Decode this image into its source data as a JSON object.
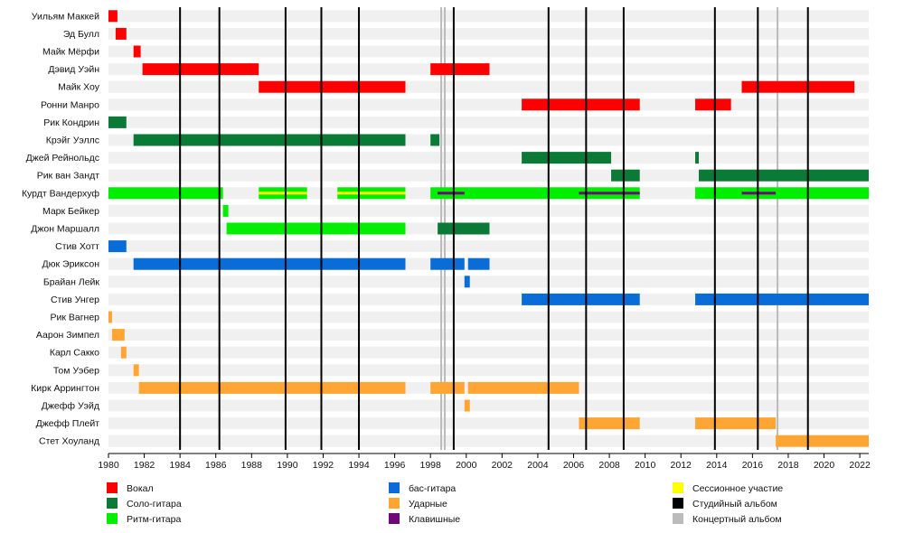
{
  "chart_data": {
    "type": "timeline",
    "x_range": [
      1980,
      2022.5
    ],
    "x_ticks": [
      1980,
      1982,
      1984,
      1986,
      1988,
      1990,
      1992,
      1994,
      1996,
      1998,
      2000,
      2002,
      2004,
      2006,
      2008,
      2010,
      2012,
      2014,
      2016,
      2018,
      2020,
      2022
    ],
    "grid": "alternating-rows",
    "colors": {
      "vocals": "#ff0000",
      "lead": "#0a7a36",
      "rhythm": "#00ee00",
      "bass": "#0a6cd6",
      "drums": "#ffa534",
      "keys": "#6e0a78",
      "session": "#ffff00",
      "studio": "#000000",
      "live": "#bbbbbb"
    },
    "members": [
      {
        "name": "Уильям Маккей",
        "bars": [
          {
            "role": "vocals",
            "start": 1980,
            "end": 1980.5
          }
        ]
      },
      {
        "name": "Эд Булл",
        "bars": [
          {
            "role": "vocals",
            "start": 1980.4,
            "end": 1981.0
          }
        ]
      },
      {
        "name": "Майк Мёрфи",
        "bars": [
          {
            "role": "vocals",
            "start": 1981.4,
            "end": 1981.8
          }
        ]
      },
      {
        "name": "Дэвид Уэйн",
        "bars": [
          {
            "role": "vocals",
            "start": 1981.9,
            "end": 1988.4
          },
          {
            "role": "vocals",
            "start": 1998.0,
            "end": 2001.3
          }
        ]
      },
      {
        "name": "Майк Хоу",
        "bars": [
          {
            "role": "vocals",
            "start": 1988.4,
            "end": 1996.6
          },
          {
            "role": "vocals",
            "start": 2015.4,
            "end": 2021.7
          }
        ]
      },
      {
        "name": "Ронни Манро",
        "bars": [
          {
            "role": "vocals",
            "start": 2003.1,
            "end": 2009.7
          },
          {
            "role": "vocals",
            "start": 2012.8,
            "end": 2014.8
          }
        ]
      },
      {
        "name": "Рик Кондрин",
        "bars": [
          {
            "role": "lead",
            "start": 1980,
            "end": 1981.0
          }
        ]
      },
      {
        "name": "Крэйг Уэллс",
        "bars": [
          {
            "role": "lead",
            "start": 1981.4,
            "end": 1996.6
          },
          {
            "role": "lead",
            "start": 1998.0,
            "end": 1998.5
          }
        ]
      },
      {
        "name": "Джей Рейнольдс",
        "bars": [
          {
            "role": "lead",
            "start": 2003.1,
            "end": 2008.1
          },
          {
            "role": "lead",
            "start": 2012.8,
            "end": 2013.0
          }
        ]
      },
      {
        "name": "Рик ван Зандт",
        "bars": [
          {
            "role": "lead",
            "start": 2008.1,
            "end": 2009.7
          },
          {
            "role": "lead",
            "start": 2013.0,
            "end": 2022.5
          }
        ]
      },
      {
        "name": "Курдт Вандерхуф",
        "bars": [
          {
            "role": "rhythm",
            "start": 1980,
            "end": 1986.4
          },
          {
            "role": "rhythm",
            "start": 1988.4,
            "end": 1991.1,
            "accent": "session"
          },
          {
            "role": "rhythm",
            "start": 1992.8,
            "end": 1996.6,
            "accent": "session"
          },
          {
            "role": "rhythm",
            "start": 1998.0,
            "end": 2009.7
          },
          {
            "role": "rhythm",
            "start": 2012.8,
            "end": 2022.5
          }
        ],
        "accents": [
          {
            "role": "keys",
            "start": 1998.4,
            "end": 1999.9
          },
          {
            "role": "keys",
            "start": 2006.3,
            "end": 2009.7
          },
          {
            "role": "keys",
            "start": 2015.4,
            "end": 2017.3
          }
        ]
      },
      {
        "name": "Марк Бейкер",
        "bars": [
          {
            "role": "rhythm",
            "start": 1986.4,
            "end": 1986.7
          }
        ]
      },
      {
        "name": "Джон Маршалл",
        "bars": [
          {
            "role": "rhythm",
            "start": 1986.6,
            "end": 1996.6
          },
          {
            "role": "lead",
            "start": 1998.4,
            "end": 2001.3
          }
        ]
      },
      {
        "name": "Стив Хотт",
        "bars": [
          {
            "role": "bass",
            "start": 1980,
            "end": 1981.0
          }
        ]
      },
      {
        "name": "Дюк Эриксон",
        "bars": [
          {
            "role": "bass",
            "start": 1981.4,
            "end": 1996.6
          },
          {
            "role": "bass",
            "start": 1998.0,
            "end": 1999.9
          },
          {
            "role": "bass",
            "start": 2000.1,
            "end": 2001.3
          }
        ]
      },
      {
        "name": "Брайан Лейк",
        "bars": [
          {
            "role": "bass",
            "start": 1999.9,
            "end": 2000.2
          }
        ]
      },
      {
        "name": "Стив Унгер",
        "bars": [
          {
            "role": "bass",
            "start": 2003.1,
            "end": 2009.7
          },
          {
            "role": "bass",
            "start": 2012.8,
            "end": 2022.5
          }
        ]
      },
      {
        "name": "Рик Вагнер",
        "bars": [
          {
            "role": "drums",
            "start": 1980,
            "end": 1980.2
          }
        ]
      },
      {
        "name": "Аарон Зимпел",
        "bars": [
          {
            "role": "drums",
            "start": 1980.2,
            "end": 1980.9
          }
        ]
      },
      {
        "name": "Карл Сакко",
        "bars": [
          {
            "role": "drums",
            "start": 1980.7,
            "end": 1981.0
          }
        ]
      },
      {
        "name": "Том Уэбер",
        "bars": [
          {
            "role": "drums",
            "start": 1981.4,
            "end": 1981.7
          }
        ]
      },
      {
        "name": "Кирк Аррингтон",
        "bars": [
          {
            "role": "drums",
            "start": 1981.7,
            "end": 1996.6
          },
          {
            "role": "drums",
            "start": 1998.0,
            "end": 1999.9
          },
          {
            "role": "drums",
            "start": 2000.1,
            "end": 2006.3
          }
        ]
      },
      {
        "name": "Джефф Уэйд",
        "bars": [
          {
            "role": "drums",
            "start": 1999.9,
            "end": 2000.2
          }
        ]
      },
      {
        "name": "Джефф Плейт",
        "bars": [
          {
            "role": "drums",
            "start": 2006.3,
            "end": 2009.7
          },
          {
            "role": "drums",
            "start": 2012.8,
            "end": 2017.3
          }
        ]
      },
      {
        "name": "Стет Хоуланд",
        "bars": [
          {
            "role": "drums",
            "start": 2017.3,
            "end": 2022.5
          }
        ]
      }
    ],
    "studio_albums": [
      1984.0,
      1986.2,
      1989.9,
      1991.9,
      1994.0,
      1999.3,
      2004.6,
      2006.7,
      2008.8,
      2013.9,
      2016.3,
      2019.1
    ],
    "live_albums": [
      1998.6,
      1998.8,
      2017.4
    ],
    "legend": [
      {
        "key": "vocals",
        "label": "Вокал"
      },
      {
        "key": "lead",
        "label": "Соло-гитара"
      },
      {
        "key": "rhythm",
        "label": "Ритм-гитара"
      },
      {
        "key": "bass",
        "label": "бас-гитара"
      },
      {
        "key": "drums",
        "label": "Ударные"
      },
      {
        "key": "keys",
        "label": "Клавишные"
      },
      {
        "key": "session",
        "label": "Сессионное участие"
      },
      {
        "key": "studio",
        "label": "Студийный альбом"
      },
      {
        "key": "live",
        "label": "Концертный альбом"
      }
    ],
    "legend_placement": "bottom"
  }
}
